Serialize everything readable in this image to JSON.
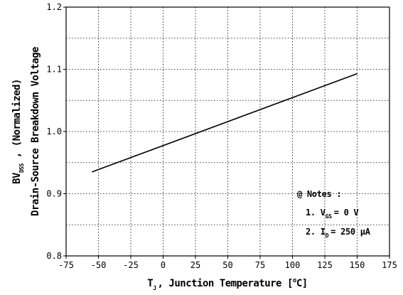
{
  "chart_data": {
    "type": "line",
    "title": "",
    "xlabel": {
      "sym": "T",
      "sub": "J",
      "text": ", Junction Temperature",
      "unit_open": "[",
      "unit_sup": "o",
      "unit_rest": "C]"
    },
    "ylabel": {
      "line1_sym": "BV",
      "line1_sub": "DSS",
      "line1_text": ", (Normalized)",
      "line2": "Drain-Source Breakdown Voltage"
    },
    "xlim": [
      -75,
      175
    ],
    "ylim": [
      0.8,
      1.2
    ],
    "xticks": [
      -75,
      -50,
      -25,
      0,
      25,
      50,
      75,
      100,
      125,
      150,
      175
    ],
    "yticks": [
      0.8,
      0.9,
      1.0,
      1.1,
      1.2
    ],
    "ytick_labels": [
      "0.8",
      "0.9",
      "1.0",
      "1.1",
      "1.2"
    ],
    "grid": true,
    "series": [
      {
        "x": [
          -55,
          150
        ],
        "y": [
          0.935,
          1.093
        ]
      }
    ],
    "notes": {
      "heading": "@ Notes :",
      "n1_prefix": "1. V",
      "n1_sub": "GS",
      "n1_rest": "= 0 V",
      "n2_prefix": "2. I",
      "n2_sub": "D",
      "n2_rest": "= 250 μA"
    }
  }
}
